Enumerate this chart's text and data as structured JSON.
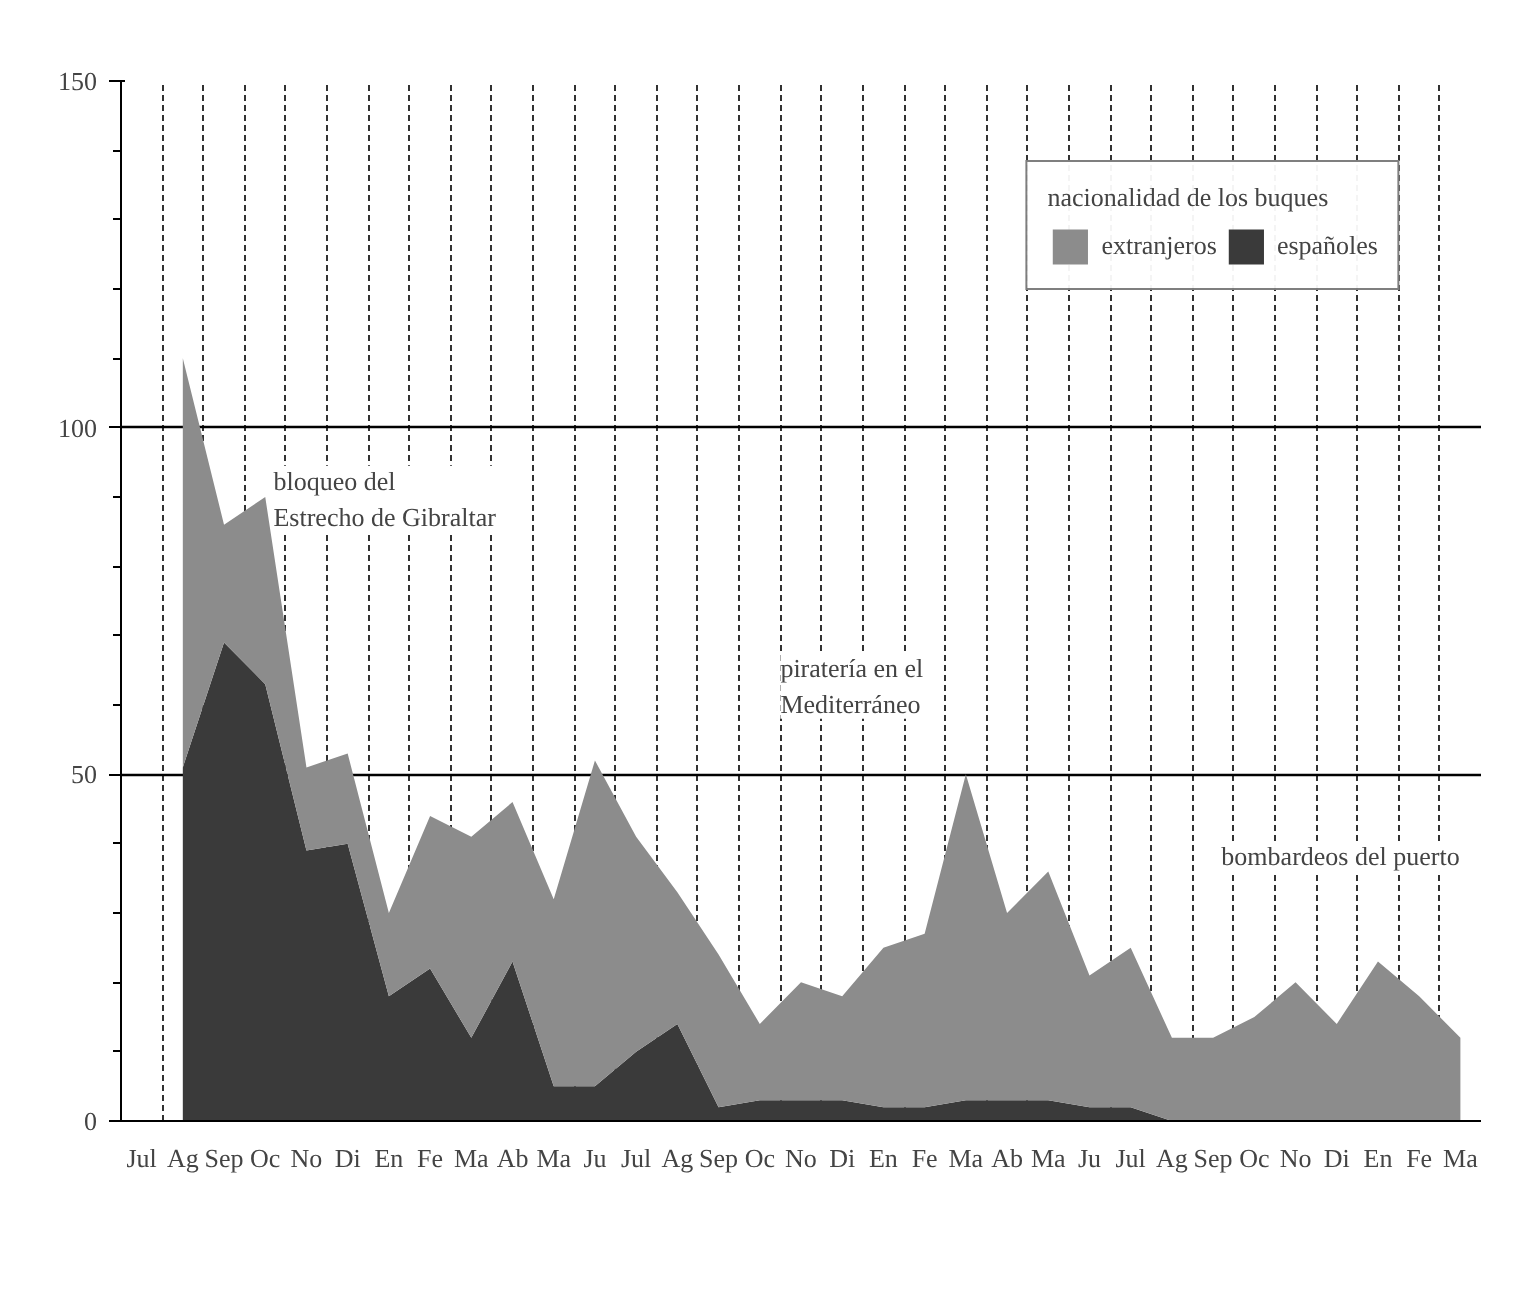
{
  "chart_data": {
    "type": "area",
    "stacked": true,
    "categories": [
      "Jul",
      "Ag",
      "Sep",
      "Oc",
      "No",
      "Di",
      "En",
      "Fe",
      "Ma",
      "Ab",
      "Ma",
      "Ju",
      "Jul",
      "Ag",
      "Sep",
      "Oc",
      "No",
      "Di",
      "En",
      "Fe",
      "Ma",
      "Ab",
      "Ma",
      "Ju",
      "Jul",
      "Ag",
      "Sep",
      "Oc",
      "No",
      "Di",
      "En",
      "Fe",
      "Ma"
    ],
    "series": [
      {
        "name": "españoles",
        "color": "#3a3a3a",
        "values": [
          null,
          51,
          69,
          63,
          39,
          40,
          18,
          22,
          12,
          23,
          5,
          5,
          10,
          14,
          2,
          3,
          3,
          3,
          2,
          2,
          3,
          3,
          3,
          2,
          2,
          0,
          0,
          0,
          0,
          0,
          0,
          0,
          0
        ]
      },
      {
        "name": "extranjeros",
        "color": "#8c8c8c",
        "values": [
          null,
          59,
          17,
          27,
          12,
          13,
          12,
          22,
          29,
          23,
          27,
          47,
          31,
          19,
          22,
          11,
          17,
          15,
          23,
          25,
          47,
          27,
          33,
          19,
          23,
          12,
          12,
          15,
          20,
          14,
          23,
          18,
          12
        ]
      }
    ],
    "legend_title": "nacionalidad de los buques",
    "legend": "top right",
    "ylim": [
      0,
      150
    ],
    "yticks": [
      0,
      50,
      100,
      150
    ],
    "grid": true,
    "annotations": [
      "bloqueo del\nEstrecho de Gibraltar",
      "piratería en el\nMediterráneo",
      "bombardeos del puerto"
    ]
  }
}
